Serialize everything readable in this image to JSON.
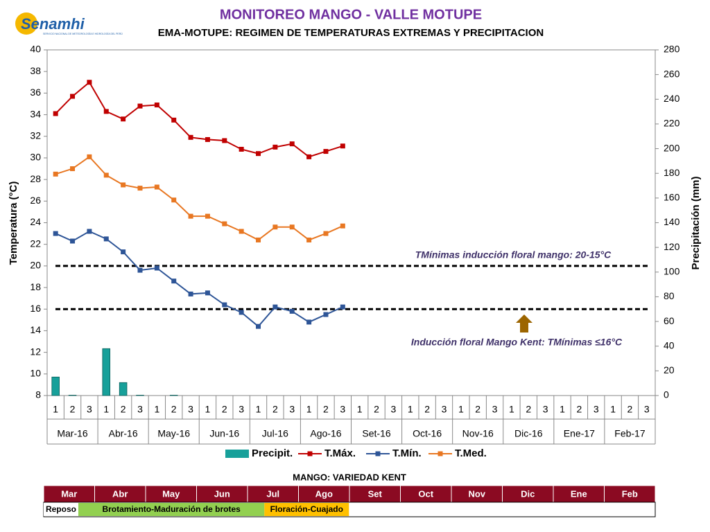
{
  "logo": {
    "name": "Senamhi",
    "subtitle": "SERVICIO NACIONAL DE METEOROLOGÍA E HIDROLOGÍA DEL PERÚ"
  },
  "chart_data": {
    "type": "line",
    "title": "MONITOREO MANGO - VALLE MOTUPE",
    "subtitle": "EMA-MOTUPE: REGIMEN DE TEMPERATURAS EXTREMAS Y PRECIPITACION",
    "y_label": "Temperatura (°C)",
    "y2_label": "Precipitación (mm)",
    "categories": [
      "1",
      "2",
      "3",
      "1",
      "2",
      "3",
      "1",
      "2",
      "3",
      "1",
      "2",
      "3",
      "1",
      "2",
      "3",
      "1",
      "2",
      "3",
      "1",
      "2",
      "3",
      "1",
      "2",
      "3",
      "1",
      "2",
      "3",
      "1",
      "2",
      "3",
      "1",
      "2",
      "3",
      "1",
      "2",
      "3"
    ],
    "months": [
      "Mar-16",
      "Abr-16",
      "May-16",
      "Jun-16",
      "Jul-16",
      "Ago-16",
      "Set-16",
      "Oct-16",
      "Nov-16",
      "Dic-16",
      "Ene-17",
      "Feb-17"
    ],
    "ylim": [
      8,
      40
    ],
    "yticks": [
      8,
      10,
      12,
      14,
      16,
      18,
      20,
      22,
      24,
      26,
      28,
      30,
      32,
      34,
      36,
      38,
      40
    ],
    "y2lim": [
      0,
      280
    ],
    "y2ticks": [
      0,
      20,
      40,
      60,
      80,
      100,
      120,
      140,
      160,
      180,
      200,
      220,
      240,
      260,
      280
    ],
    "series": [
      {
        "name": "Precipit.",
        "type": "bar",
        "axis": "y2",
        "color": "#17a09a",
        "values": [
          15,
          0.3,
          0,
          38,
          10.5,
          0.3,
          0,
          0.3,
          0,
          0,
          0,
          0,
          0,
          0,
          0,
          0,
          0,
          0,
          null,
          null,
          null,
          null,
          null,
          null,
          null,
          null,
          null,
          null,
          null,
          null,
          null,
          null,
          null,
          null,
          null,
          null
        ]
      },
      {
        "name": "T.Máx.",
        "color": "#c00000",
        "values": [
          34.1,
          35.7,
          37.0,
          34.3,
          33.6,
          34.8,
          34.9,
          33.5,
          31.9,
          31.7,
          31.6,
          30.8,
          30.4,
          31.0,
          31.3,
          30.1,
          30.6,
          31.1,
          null,
          null,
          null,
          null,
          null,
          null,
          null,
          null,
          null,
          null,
          null,
          null,
          null,
          null,
          null,
          null,
          null,
          null
        ]
      },
      {
        "name": "T.Mín.",
        "color": "#2e5597",
        "values": [
          23.0,
          22.3,
          23.2,
          22.5,
          21.3,
          19.6,
          19.8,
          18.6,
          17.4,
          17.5,
          16.4,
          15.7,
          14.4,
          16.2,
          15.8,
          14.8,
          15.5,
          16.2,
          null,
          null,
          null,
          null,
          null,
          null,
          null,
          null,
          null,
          null,
          null,
          null,
          null,
          null,
          null,
          null,
          null,
          null
        ]
      },
      {
        "name": "T.Med.",
        "color": "#e87722",
        "values": [
          28.5,
          29.0,
          30.1,
          28.4,
          27.5,
          27.2,
          27.3,
          26.1,
          24.6,
          24.6,
          23.9,
          23.2,
          22.4,
          23.6,
          23.6,
          22.4,
          23.0,
          23.7,
          null,
          null,
          null,
          null,
          null,
          null,
          null,
          null,
          null,
          null,
          null,
          null,
          null,
          null,
          null,
          null,
          null,
          null
        ]
      }
    ],
    "reference_lines": [
      20,
      16
    ],
    "annotations": [
      "TMínimas inducción floral mango: 20-15°C",
      "Inducción floral  Mango Kent: TMínimas ≤16°C"
    ]
  },
  "phase_table": {
    "title": "MANGO: VARIEDAD KENT",
    "months": [
      "Mar",
      "Abr",
      "May",
      "Jun",
      "Jul",
      "Ago",
      "Set",
      "Oct",
      "Nov",
      "Dic",
      "Ene",
      "Feb"
    ],
    "phases": [
      {
        "label": "Reposo",
        "color": "#ffffff"
      },
      {
        "label": "Brotamiento-Maduración de brotes",
        "color": "#92d050"
      },
      {
        "label": "Floración-Cuajado",
        "color": "#ffc000"
      }
    ]
  }
}
